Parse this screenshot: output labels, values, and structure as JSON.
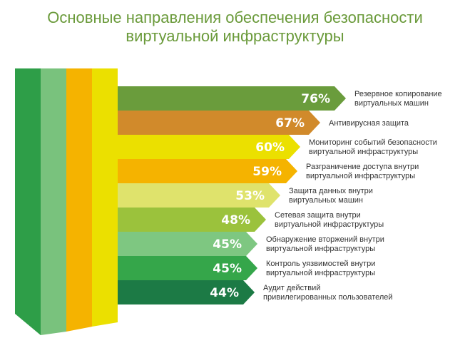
{
  "title_line1": "Основные направления обеспечения безопасности",
  "title_line2": "виртуальной инфраструктуры",
  "chart_data": {
    "type": "bar",
    "orientation": "horizontal",
    "unit": "%",
    "categories": [
      [
        "Резервное копирование",
        "виртуальных машин"
      ],
      [
        "Антивирусная защита"
      ],
      [
        "Мониторинг событий безопасности",
        "виртуальной инфраструктуры"
      ],
      [
        "Разграничение доступа внутри",
        "виртуальной инфраструктуры"
      ],
      [
        "Защита данных внутри",
        "виртуальных машин"
      ],
      [
        "Сетевая защита внутри",
        "виртуальной инфраструктуры"
      ],
      [
        "Обнаружение вторжений внутри",
        "виртуальной инфраструктуры"
      ],
      [
        "Контроль уязвимостей внутри",
        "виртуальной инфраструктуры"
      ],
      [
        "Аудит действий",
        "привилегированных пользователей"
      ]
    ],
    "values": [
      76,
      67,
      60,
      59,
      53,
      48,
      45,
      45,
      44
    ],
    "value_labels": [
      "76%",
      "67%",
      "60%",
      "59%",
      "53%",
      "48%",
      "45%",
      "45%",
      "44%"
    ],
    "colors": [
      "#6a9c3c",
      "#d18a2b",
      "#ebe000",
      "#f5b300",
      "#dfe36c",
      "#9bc23c",
      "#7ec781",
      "#35a64a",
      "#1c7a45"
    ],
    "column_colors": [
      "#2e9e48",
      "#79c27d",
      "#f5b300",
      "#ebe000"
    ]
  }
}
